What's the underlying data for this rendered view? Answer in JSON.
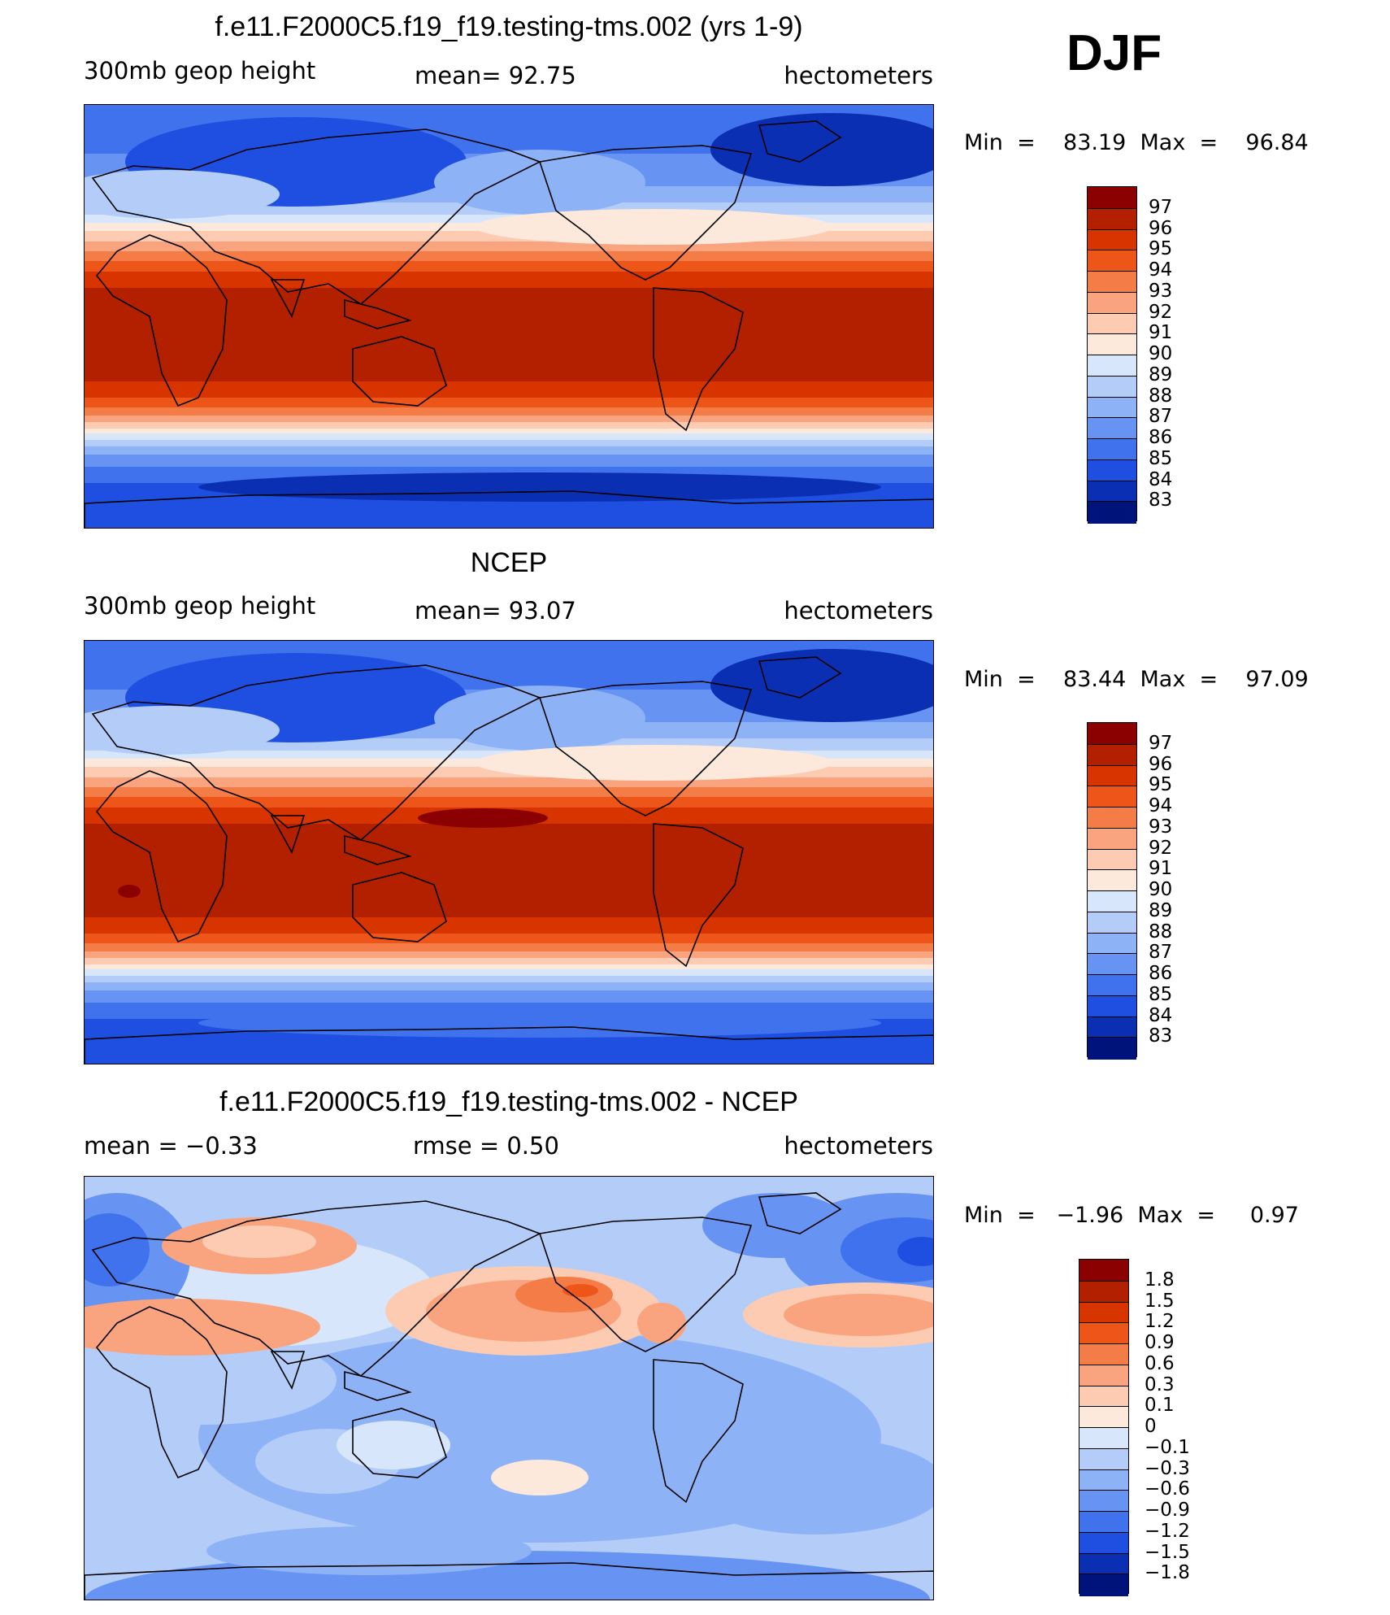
{
  "season": "DJF",
  "panels": [
    {
      "title": "f.e11.F2000C5.f19_f19.testing-tms.002 (yrs 1-9)",
      "left_label": "300mb  geop  height",
      "center_label": "mean=   92.75",
      "right_label": "hectometers",
      "minmax": "Min  =    83.19  Max  =    96.84",
      "colorbar": {
        "labels": [
          "97",
          "96",
          "95",
          "94",
          "93",
          "92",
          "91",
          "90",
          "89",
          "88",
          "87",
          "86",
          "85",
          "84",
          "83"
        ],
        "colors": [
          "#8b0000",
          "#b22000",
          "#d83400",
          "#ee5518",
          "#f47c47",
          "#f9a37f",
          "#fdcbb2",
          "#fde9dc",
          "#d7e6fb",
          "#b3cdf8",
          "#8eb2f6",
          "#6793f2",
          "#3f72ec",
          "#1e4fe0",
          "#0b2fb2",
          "#00137a"
        ]
      },
      "field": {
        "kind": "model"
      }
    },
    {
      "title": "NCEP",
      "left_label": "300mb  geop  height",
      "center_label": "mean=   93.07",
      "right_label": "hectometers",
      "minmax": "Min  =    83.44  Max  =    97.09",
      "colorbar": {
        "labels": [
          "97",
          "96",
          "95",
          "94",
          "93",
          "92",
          "91",
          "90",
          "89",
          "88",
          "87",
          "86",
          "85",
          "84",
          "83"
        ],
        "colors": [
          "#8b0000",
          "#b22000",
          "#d83400",
          "#ee5518",
          "#f47c47",
          "#f9a37f",
          "#fdcbb2",
          "#fde9dc",
          "#d7e6fb",
          "#b3cdf8",
          "#8eb2f6",
          "#6793f2",
          "#3f72ec",
          "#1e4fe0",
          "#0b2fb2",
          "#00137a"
        ]
      },
      "field": {
        "kind": "obs"
      }
    },
    {
      "title": "f.e11.F2000C5.f19_f19.testing-tms.002 - NCEP",
      "left_label": "mean  =    −0.33",
      "center_label": "rmse  =     0.50",
      "right_label": "hectometers",
      "minmax": "Min  =   −1.96  Max  =     0.97",
      "colorbar": {
        "labels": [
          "1.8",
          "1.5",
          "1.2",
          "0.9",
          "0.6",
          "0.3",
          "0.1",
          "0",
          "−0.1",
          "−0.3",
          "−0.6",
          "−0.9",
          "−1.2",
          "−1.5",
          "−1.8"
        ],
        "colors": [
          "#8b0000",
          "#b22000",
          "#d83400",
          "#ee5518",
          "#f47c47",
          "#f9a37f",
          "#fdcbb2",
          "#fde9dc",
          "#d7e6fb",
          "#b3cdf8",
          "#8eb2f6",
          "#6793f2",
          "#3f72ec",
          "#1e4fe0",
          "#0b2fb2",
          "#00137a"
        ]
      },
      "field": {
        "kind": "diff"
      }
    }
  ]
}
